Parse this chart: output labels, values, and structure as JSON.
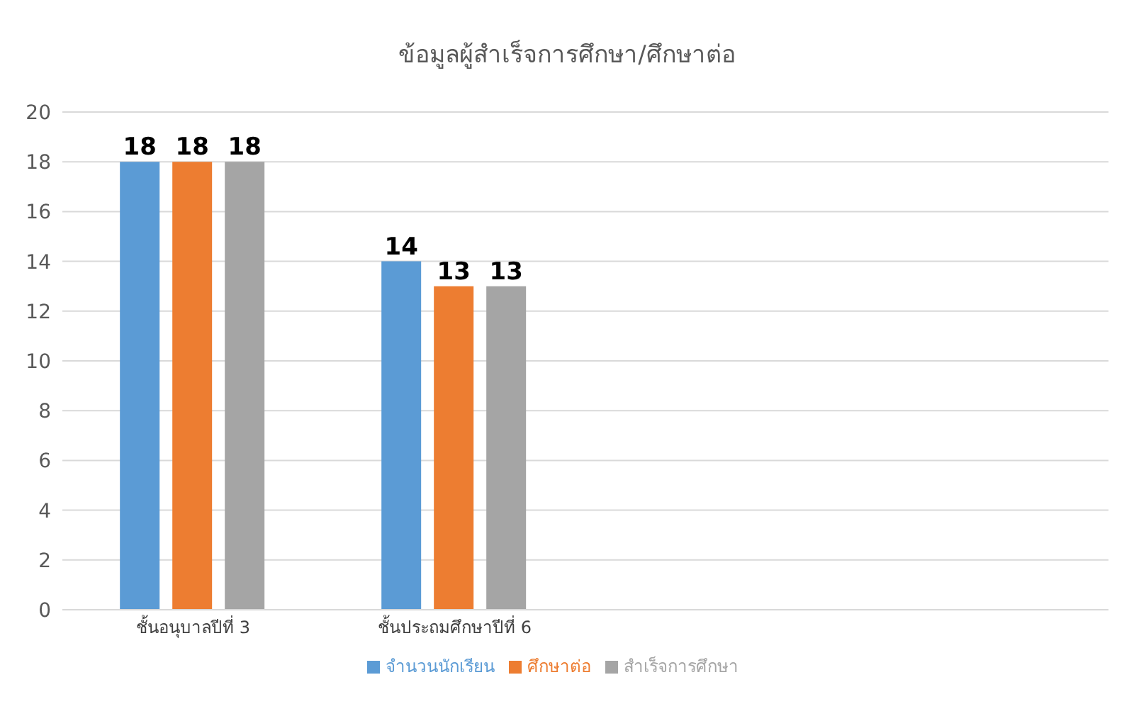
{
  "chart_data": {
    "type": "bar",
    "title": "ข้อมูลผู้สำเร็จการศึกษา/ศึกษาต่อ",
    "categories": [
      "ชั้นอนุบาลปีที่ 3",
      "ชั้นประถมศึกษาปีที่ 6",
      null,
      null
    ],
    "series": [
      {
        "name": "จำนวนนักเรียน",
        "color": "#5b9bd5",
        "values": [
          18,
          14,
          null,
          null
        ]
      },
      {
        "name": "ศึกษาต่อ",
        "color": "#ed7d31",
        "values": [
          18,
          13,
          null,
          null
        ]
      },
      {
        "name": "สำเร็จการศึกษา",
        "color": "#a5a5a5",
        "values": [
          18,
          13,
          null,
          null
        ]
      }
    ],
    "ylim": [
      0,
      20
    ],
    "yticks": [
      0,
      2,
      4,
      6,
      8,
      10,
      12,
      14,
      16,
      18,
      20
    ],
    "grid": "y",
    "legend": "bottom",
    "data_labels": true
  }
}
